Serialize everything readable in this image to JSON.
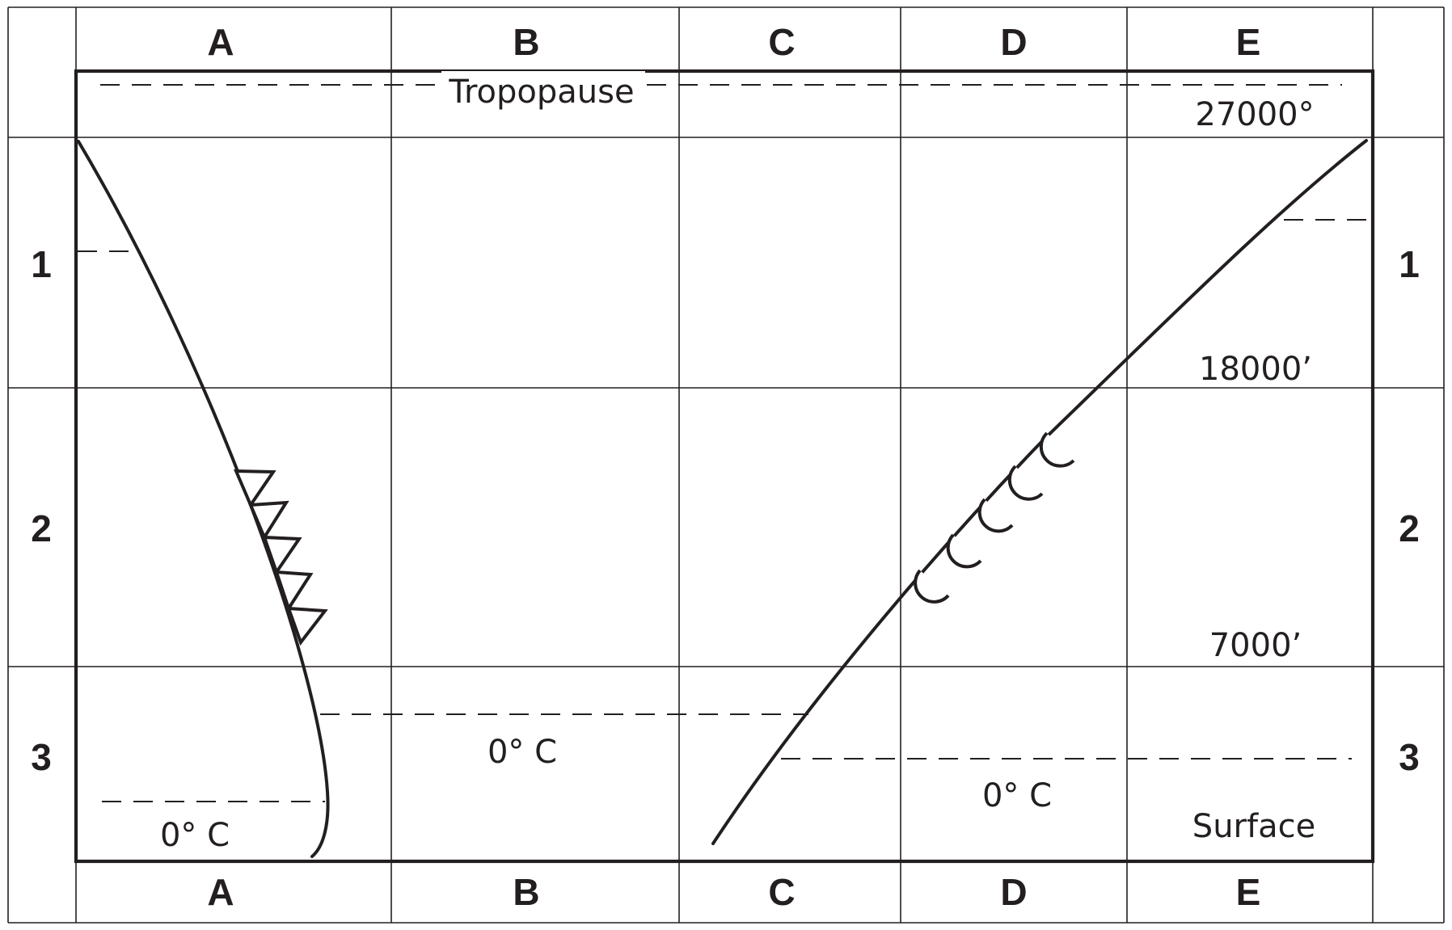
{
  "columns": [
    "A",
    "B",
    "C",
    "D",
    "E"
  ],
  "rows": [
    "1",
    "2",
    "3"
  ],
  "labels": {
    "tropopause": "Tropopause",
    "alt_top": "27000°",
    "alt_mid": "18000’",
    "alt_low": "7000’",
    "temp_a": "0° C",
    "temp_b": "0° C",
    "temp_d": "0° C",
    "surface": "Surface"
  },
  "fronts": {
    "left": {
      "symbol": "cold-front-triangles",
      "count": 5
    },
    "right": {
      "symbol": "warm-front-semicircles",
      "count": 5
    }
  }
}
